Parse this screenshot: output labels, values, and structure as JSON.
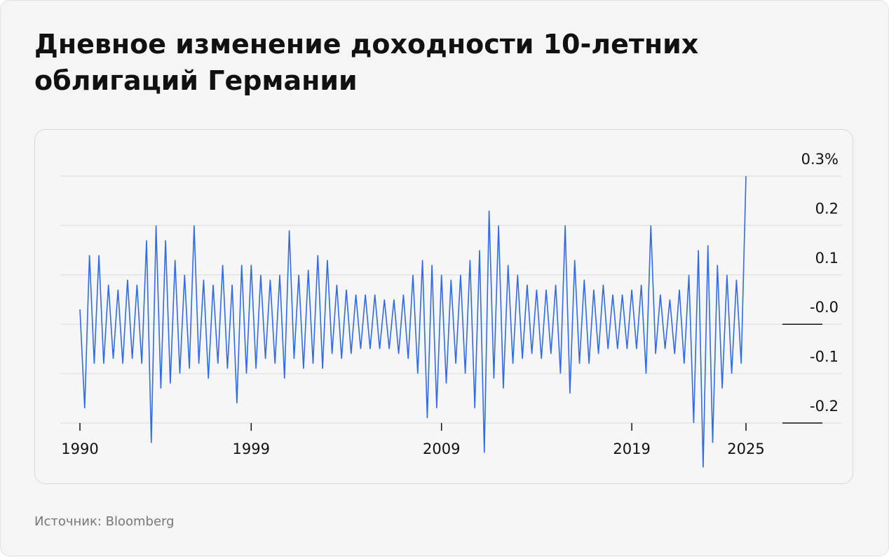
{
  "title": "Дневное изменение доходности 10-летних облигаций Германии",
  "source": "Источник: Bloomberg",
  "chart_data": {
    "type": "line",
    "series": [
      {
        "color": "#2f6bea",
        "x": [
          1990,
          1990.25,
          1990.5,
          1990.75,
          1991,
          1991.25,
          1991.5,
          1991.75,
          1992,
          1992.25,
          1992.5,
          1992.75,
          1993,
          1993.25,
          1993.5,
          1993.75,
          1994,
          1994.25,
          1994.5,
          1994.75,
          1995,
          1995.25,
          1995.5,
          1995.75,
          1996,
          1996.25,
          1996.5,
          1996.75,
          1997,
          1997.25,
          1997.5,
          1997.75,
          1998,
          1998.25,
          1998.5,
          1998.75,
          1999,
          1999.25,
          1999.5,
          1999.75,
          2000,
          2000.25,
          2000.5,
          2000.75,
          2001,
          2001.25,
          2001.5,
          2001.75,
          2002,
          2002.25,
          2002.5,
          2002.75,
          2003,
          2003.25,
          2003.5,
          2003.75,
          2004,
          2004.25,
          2004.5,
          2004.75,
          2005,
          2005.25,
          2005.5,
          2005.75,
          2006,
          2006.25,
          2006.5,
          2006.75,
          2007,
          2007.25,
          2007.5,
          2007.75,
          2008,
          2008.25,
          2008.5,
          2008.75,
          2009,
          2009.25,
          2009.5,
          2009.75,
          2010,
          2010.25,
          2010.5,
          2010.75,
          2011,
          2011.25,
          2011.5,
          2011.75,
          2012,
          2012.25,
          2012.5,
          2012.75,
          2013,
          2013.25,
          2013.5,
          2013.75,
          2014,
          2014.25,
          2014.5,
          2014.75,
          2015,
          2015.25,
          2015.5,
          2015.75,
          2016,
          2016.25,
          2016.5,
          2016.75,
          2017,
          2017.25,
          2017.5,
          2017.75,
          2018,
          2018.25,
          2018.5,
          2018.75,
          2019,
          2019.25,
          2019.5,
          2019.75,
          2020,
          2020.25,
          2020.5,
          2020.75,
          2021,
          2021.25,
          2021.5,
          2021.75,
          2022,
          2022.25,
          2022.5,
          2022.75,
          2023,
          2023.25,
          2023.5,
          2023.75,
          2024,
          2024.25,
          2024.5,
          2024.75,
          2025
        ],
        "values": [
          0.03,
          -0.17,
          0.14,
          -0.08,
          0.14,
          -0.08,
          0.08,
          -0.07,
          0.07,
          -0.08,
          0.09,
          -0.07,
          0.08,
          -0.08,
          0.17,
          -0.24,
          0.2,
          -0.13,
          0.17,
          -0.12,
          0.13,
          -0.1,
          0.1,
          -0.09,
          0.2,
          -0.08,
          0.09,
          -0.11,
          0.08,
          -0.08,
          0.12,
          -0.09,
          0.08,
          -0.16,
          0.12,
          -0.1,
          0.12,
          -0.09,
          0.1,
          -0.07,
          0.09,
          -0.08,
          0.1,
          -0.11,
          0.19,
          -0.07,
          0.1,
          -0.09,
          0.11,
          -0.08,
          0.14,
          -0.09,
          0.13,
          -0.06,
          0.08,
          -0.07,
          0.07,
          -0.06,
          0.06,
          -0.05,
          0.06,
          -0.05,
          0.06,
          -0.05,
          0.05,
          -0.05,
          0.05,
          -0.06,
          0.06,
          -0.07,
          0.1,
          -0.1,
          0.13,
          -0.19,
          0.12,
          -0.17,
          0.1,
          -0.12,
          0.09,
          -0.08,
          0.1,
          -0.1,
          0.13,
          -0.17,
          0.15,
          -0.26,
          0.23,
          -0.11,
          0.2,
          -0.13,
          0.12,
          -0.08,
          0.1,
          -0.07,
          0.08,
          -0.06,
          0.07,
          -0.07,
          0.07,
          -0.06,
          0.08,
          -0.1,
          0.2,
          -0.14,
          0.13,
          -0.08,
          0.09,
          -0.08,
          0.07,
          -0.06,
          0.08,
          -0.05,
          0.06,
          -0.05,
          0.06,
          -0.05,
          0.07,
          -0.05,
          0.08,
          -0.1,
          0.2,
          -0.06,
          0.06,
          -0.05,
          0.05,
          -0.06,
          0.07,
          -0.08,
          0.1,
          -0.2,
          0.15,
          -0.29,
          0.16,
          -0.24,
          0.12,
          -0.13,
          0.1,
          -0.1,
          0.09,
          -0.08,
          0.3
        ]
      }
    ],
    "xlim": [
      1990,
      2025
    ],
    "xticks": [
      1990,
      1999,
      2009,
      2019,
      2025
    ],
    "ylim": [
      -0.3,
      0.3
    ],
    "yticks": [
      {
        "value": 0.3,
        "label": "0.3%"
      },
      0.2,
      0.1,
      {
        "value": 0,
        "label": "-0.0"
      },
      -0.1,
      -0.2
    ],
    "grid": true
  }
}
